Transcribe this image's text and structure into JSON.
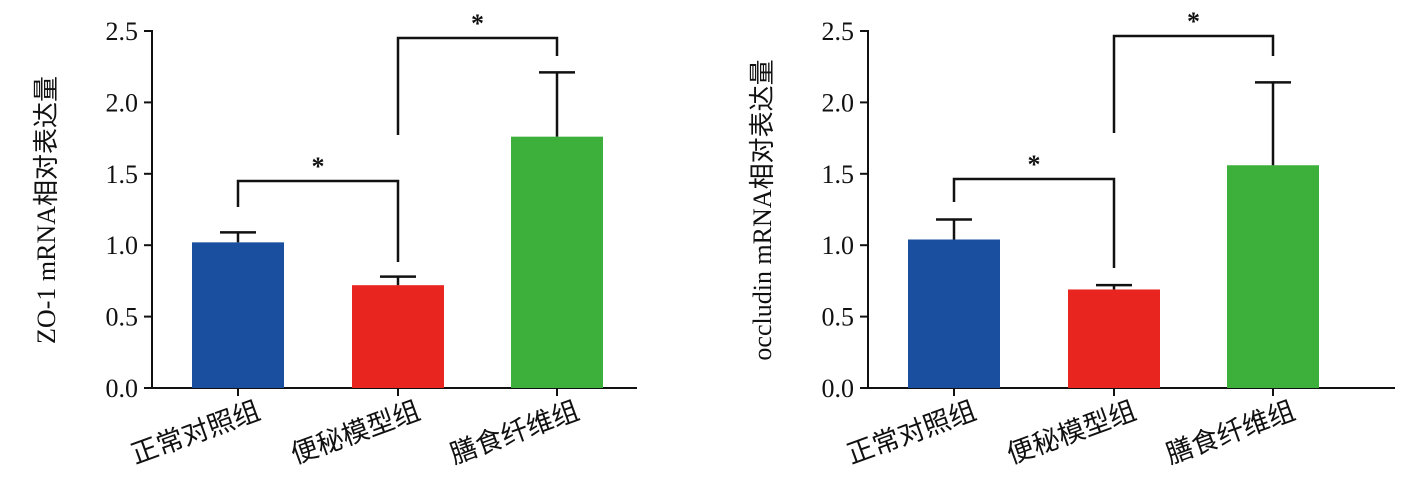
{
  "chart_data": [
    {
      "type": "bar",
      "y_label": "ZO-1 mRNA相对表达量",
      "categories": [
        "正常对照组",
        "便秘模型组",
        "膳食纤维组"
      ],
      "values": [
        1.02,
        0.72,
        1.76
      ],
      "errors": [
        0.07,
        0.06,
        0.45
      ],
      "colors": [
        "#1a4fa0",
        "#e8251f",
        "#3cb03a"
      ],
      "ylim": [
        0,
        2.5
      ],
      "yticks": [
        {
          "value": 0,
          "label": "0.0"
        },
        0.5,
        {
          "value": 1,
          "label": "1.0"
        },
        1.5,
        {
          "value": 2,
          "label": "2.0"
        },
        2.5
      ],
      "annotations": [
        "*",
        "*"
      ]
    },
    {
      "type": "bar",
      "y_label": "occludin mRNA相对表达量",
      "categories": [
        "正常对照组",
        "便秘模型组",
        "膳食纤维组"
      ],
      "values": [
        1.04,
        0.69,
        1.56
      ],
      "errors": [
        0.14,
        0.03,
        0.58
      ],
      "colors": [
        "#1a4fa0",
        "#e8251f",
        "#3cb03a"
      ],
      "ylim": [
        0,
        2.5
      ],
      "yticks": [
        {
          "value": 0,
          "label": "0.0"
        },
        0.5,
        {
          "value": 1,
          "label": "1.0"
        },
        1.5,
        {
          "value": 2,
          "label": "2.0"
        },
        2.5
      ],
      "annotations": [
        "*",
        "*"
      ]
    }
  ]
}
